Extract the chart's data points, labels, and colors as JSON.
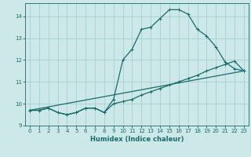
{
  "xlabel": "Humidex (Indice chaleur)",
  "background_color": "#cce8e8",
  "line_color": "#1a6b6b",
  "xlim": [
    -0.5,
    23.5
  ],
  "ylim": [
    9,
    14.6
  ],
  "yticks": [
    9,
    10,
    11,
    12,
    13,
    14
  ],
  "xticks": [
    0,
    1,
    2,
    3,
    4,
    5,
    6,
    7,
    8,
    9,
    10,
    11,
    12,
    13,
    14,
    15,
    16,
    17,
    18,
    19,
    20,
    21,
    22,
    23
  ],
  "series1_x": [
    0,
    1,
    2,
    3,
    4,
    5,
    6,
    7,
    8,
    9,
    10,
    11,
    12,
    13,
    14,
    15,
    16,
    17,
    18,
    19,
    20,
    21,
    22,
    23
  ],
  "series1_y": [
    9.7,
    9.7,
    9.8,
    9.6,
    9.5,
    9.6,
    9.8,
    9.8,
    9.6,
    10.2,
    12.0,
    12.5,
    13.4,
    13.5,
    13.9,
    14.3,
    14.3,
    14.1,
    13.4,
    13.1,
    12.6,
    11.9,
    11.6,
    11.5
  ],
  "series2_x": [
    0,
    1,
    2,
    3,
    4,
    5,
    6,
    7,
    8,
    9,
    10,
    11,
    12,
    13,
    14,
    15,
    16,
    17,
    18,
    19,
    20,
    21,
    22,
    23
  ],
  "series2_y": [
    9.7,
    9.7,
    9.8,
    9.6,
    9.5,
    9.6,
    9.8,
    9.8,
    9.6,
    10.0,
    10.1,
    10.2,
    10.4,
    10.55,
    10.7,
    10.85,
    11.0,
    11.15,
    11.3,
    11.5,
    11.65,
    11.8,
    11.95,
    11.5
  ],
  "series3_x": [
    0,
    23
  ],
  "series3_y": [
    9.7,
    11.5
  ],
  "xlabel_fontsize": 6,
  "tick_fontsize": 5,
  "linewidth": 0.9,
  "markersize": 2.5
}
